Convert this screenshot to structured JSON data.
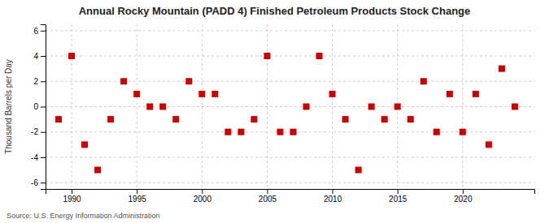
{
  "chart_data": {
    "type": "scatter",
    "title": "Annual Rocky Mountain (PADD 4) Finished Petroleum Products Stock Change",
    "ylabel": "Thousand Barrels per Day",
    "source": "Source: U.S. Energy Information Administration",
    "x": [
      1989,
      1990,
      1991,
      1992,
      1993,
      1994,
      1995,
      1996,
      1997,
      1998,
      1999,
      2000,
      2001,
      2002,
      2003,
      2004,
      2005,
      2006,
      2007,
      2008,
      2009,
      2010,
      2011,
      2012,
      2013,
      2014,
      2015,
      2016,
      2017,
      2018,
      2019,
      2020,
      2021,
      2022,
      2023,
      2024
    ],
    "values": [
      -1,
      4,
      -3,
      -5,
      -1,
      2,
      1,
      0,
      0,
      -1,
      2,
      1,
      1,
      -2,
      -2,
      -1,
      4,
      -2,
      -2,
      0,
      4,
      1,
      -1,
      -5,
      0,
      -1,
      0,
      -1,
      2,
      -2,
      1,
      -2,
      1,
      -3,
      3,
      0
    ],
    "color": "#cc0000",
    "marker": "square",
    "xlim": [
      1988.0,
      2025.5
    ],
    "ylim": [
      -6.5,
      6.5
    ],
    "xticks": [
      1990,
      1995,
      2000,
      2005,
      2010,
      2015,
      2020
    ],
    "yticks": [
      -6,
      -4,
      -2,
      0,
      2,
      4,
      6
    ],
    "grid": true
  }
}
